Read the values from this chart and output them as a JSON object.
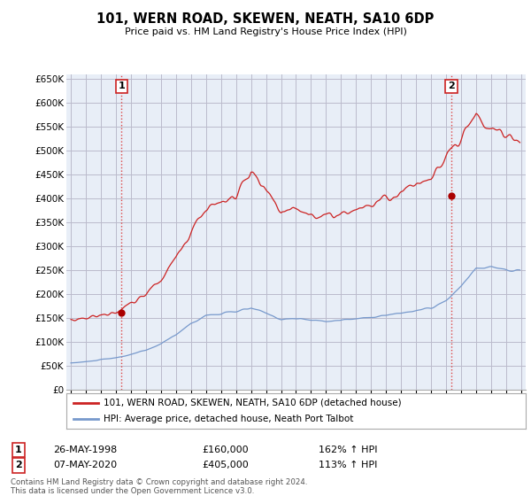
{
  "title": "101, WERN ROAD, SKEWEN, NEATH, SA10 6DP",
  "subtitle": "Price paid vs. HM Land Registry's House Price Index (HPI)",
  "ylim": [
    0,
    660000
  ],
  "yticks": [
    0,
    50000,
    100000,
    150000,
    200000,
    250000,
    300000,
    350000,
    400000,
    450000,
    500000,
    550000,
    600000,
    650000
  ],
  "xlim_start": 1994.7,
  "xlim_end": 2025.3,
  "line_color_red": "#cc2222",
  "line_color_blue": "#7799cc",
  "dot_color_red": "#aa0000",
  "vline_color": "#dd4444",
  "vline_style": ":",
  "grid_color": "#bbbbcc",
  "bg_color": "#e8eef7",
  "fig_color": "#ffffff",
  "legend_label_red": "101, WERN ROAD, SKEWEN, NEATH, SA10 6DP (detached house)",
  "legend_label_blue": "HPI: Average price, detached house, Neath Port Talbot",
  "transaction1_label": "1",
  "transaction1_date": "26-MAY-1998",
  "transaction1_price": "£160,000",
  "transaction1_hpi": "162% ↑ HPI",
  "transaction1_x": 1998.38,
  "transaction1_y": 160000,
  "transaction2_label": "2",
  "transaction2_date": "07-MAY-2020",
  "transaction2_price": "£405,000",
  "transaction2_hpi": "113% ↑ HPI",
  "transaction2_x": 2020.35,
  "transaction2_y": 405000,
  "footer": "Contains HM Land Registry data © Crown copyright and database right 2024.\nThis data is licensed under the Open Government Licence v3.0."
}
